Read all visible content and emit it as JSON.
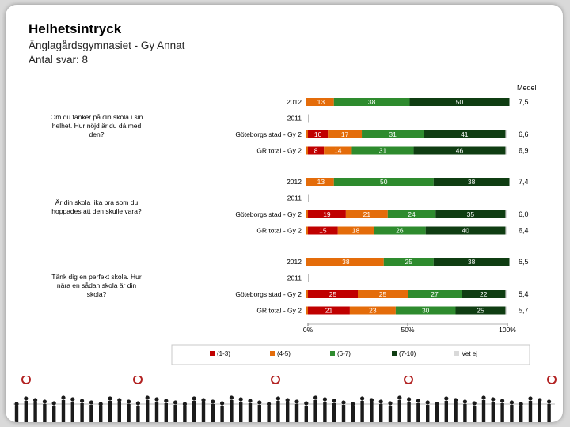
{
  "header": {
    "title": "Helhetsintryck",
    "subtitle": "Änglagårdsgymnasiet - Gy Annat",
    "responses": "Antal svar: 8"
  },
  "chart_data": {
    "type": "bar",
    "stacked": true,
    "orientation": "horizontal",
    "xlim": [
      0,
      100
    ],
    "x_ticks": [
      "0%",
      "50%",
      "100%"
    ],
    "medel_label": "Medel",
    "legend": [
      {
        "name": "(1-3)",
        "color": "#c00000"
      },
      {
        "name": "(4-5)",
        "color": "#e46c0a"
      },
      {
        "name": "(6-7)",
        "color": "#2e8b2e"
      },
      {
        "name": "(7-10)",
        "color": "#0f3d12"
      },
      {
        "name": "Vet ej",
        "color": "#d9d9d9"
      }
    ],
    "questions": [
      {
        "text": [
          "Om du tänker på din skola i sin",
          "helhet. Hur nöjd är du då med",
          "den?"
        ],
        "rows": [
          {
            "label": "2012",
            "values": [
              0,
              13,
              38,
              50,
              0
            ],
            "medel": "7,5"
          },
          {
            "label": "2011",
            "values": [
              0,
              0,
              0,
              0,
              0
            ],
            "medel": ""
          },
          {
            "label": "Göteborgs stad - Gy 2",
            "values": [
              10,
              17,
              31,
              41,
              1
            ],
            "medel": "6,6"
          },
          {
            "label": "GR total - Gy 2",
            "values": [
              8,
              14,
              31,
              46,
              1
            ],
            "medel": "6,9"
          }
        ]
      },
      {
        "text": [
          "Är din skola lika bra som du",
          "hoppades att den skulle vara?"
        ],
        "rows": [
          {
            "label": "2012",
            "values": [
              0,
              13,
              50,
              38,
              0
            ],
            "medel": "7,4"
          },
          {
            "label": "2011",
            "values": [
              0,
              0,
              0,
              0,
              0
            ],
            "medel": ""
          },
          {
            "label": "Göteborgs stad - Gy 2",
            "values": [
              19,
              21,
              24,
              35,
              1
            ],
            "medel": "6,0"
          },
          {
            "label": "GR total - Gy 2",
            "values": [
              15,
              18,
              26,
              40,
              1
            ],
            "medel": "6,4"
          }
        ]
      },
      {
        "text": [
          "Tänk dig en perfekt skola. Hur",
          "nära en sådan skola är din",
          "skola?"
        ],
        "rows": [
          {
            "label": "2012",
            "values": [
              0,
              38,
              25,
              38,
              0
            ],
            "medel": "6,5"
          },
          {
            "label": "2011",
            "values": [
              0,
              0,
              0,
              0,
              0
            ],
            "medel": ""
          },
          {
            "label": "Göteborgs stad - Gy 2",
            "values": [
              25,
              25,
              27,
              22,
              1
            ],
            "medel": "5,4"
          },
          {
            "label": "GR total - Gy 2",
            "values": [
              21,
              23,
              30,
              25,
              1
            ],
            "medel": "5,7"
          }
        ]
      }
    ]
  }
}
